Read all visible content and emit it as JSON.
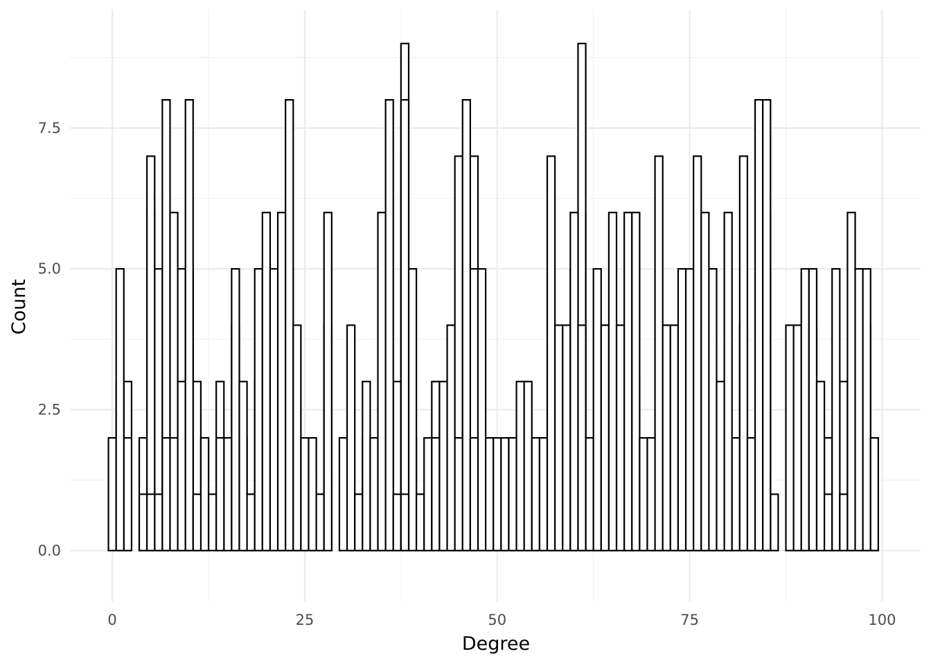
{
  "chart_data": {
    "type": "bar",
    "subtype": "histogram",
    "title": "",
    "xlabel": "Degree",
    "ylabel": "Count",
    "xlim": [
      -5.5,
      105
    ],
    "ylim": [
      -0.9,
      9.6
    ],
    "x_ticks": [
      0,
      25,
      50,
      75,
      100
    ],
    "x_tick_labels": [
      "0",
      "25",
      "50",
      "75",
      "100"
    ],
    "y_ticks": [
      0,
      2.5,
      5,
      7.5
    ],
    "y_tick_labels": [
      "0.0",
      "2.5",
      "5.0",
      "7.5"
    ],
    "grid": true,
    "bin_width": 1,
    "x": [
      0,
      1,
      2,
      3,
      4,
      5,
      6,
      7,
      8,
      9,
      10,
      11,
      12,
      13,
      14,
      15,
      16,
      17,
      18,
      19,
      20,
      21,
      22,
      23,
      24,
      25,
      26,
      27,
      28,
      29,
      30,
      31,
      32,
      33,
      34,
      35,
      36,
      37,
      38,
      39,
      40,
      41,
      42,
      43,
      44,
      45,
      46,
      47,
      48,
      49,
      50,
      51,
      52,
      53,
      54,
      55,
      56,
      57,
      58,
      59,
      60,
      61,
      62,
      63,
      64,
      65,
      66,
      67,
      68,
      69,
      70,
      71,
      72,
      73,
      74,
      75,
      76,
      77,
      78,
      79,
      80,
      81,
      82,
      83,
      84,
      85,
      86,
      87,
      88,
      89,
      90,
      91,
      92,
      93,
      94,
      95,
      96,
      97,
      98,
      99
    ],
    "series": [
      {
        "values": [
          2,
          3,
          3,
          0,
          0,
          4,
          3,
          5,
          4,
          3,
          5,
          2,
          2,
          1,
          1,
          1,
          4,
          2,
          1,
          3,
          3,
          3,
          3,
          5,
          3,
          1,
          1,
          1,
          4,
          0,
          0,
          1,
          1,
          2,
          1,
          2,
          1,
          3,
          7,
          2,
          1,
          1,
          3,
          2,
          1,
          4,
          2,
          7,
          2,
          1,
          1,
          1,
          2,
          2,
          2,
          2,
          2,
          3,
          2,
          2,
          4,
          6,
          2,
          1,
          4,
          4,
          2,
          4,
          3,
          1,
          1,
          3,
          1,
          2,
          3,
          2,
          5,
          2,
          2,
          2,
          2,
          2,
          4,
          2,
          3,
          6,
          1,
          0,
          0,
          3,
          4,
          4,
          1,
          2,
          1,
          3,
          1,
          3,
          4,
          1
        ]
      },
      {
        "values": [
          0,
          3,
          2,
          0,
          2,
          6,
          5,
          8,
          6,
          5,
          5,
          3,
          2,
          0,
          3,
          2,
          5,
          3,
          1,
          5,
          6,
          5,
          6,
          8,
          4,
          2,
          2,
          1,
          6,
          0,
          2,
          4,
          1,
          3,
          2,
          6,
          8,
          1,
          9,
          5,
          1,
          2,
          2,
          3,
          4,
          7,
          5,
          5,
          5,
          2,
          2,
          2,
          2,
          3,
          3,
          2,
          2,
          7,
          4,
          4,
          5,
          9,
          2,
          5,
          4,
          6,
          4,
          6,
          6,
          2,
          2,
          7,
          4,
          4,
          5,
          5,
          7,
          4,
          5,
          3,
          6,
          2,
          7,
          2,
          8,
          5,
          0,
          0,
          4,
          4,
          5,
          5,
          3,
          1,
          5,
          1,
          6,
          5,
          5,
          2
        ]
      },
      {
        "values": [
          0,
          5,
          0,
          0,
          1,
          7,
          1,
          2,
          2,
          3,
          8,
          1,
          0,
          0,
          2,
          0,
          0,
          0,
          0,
          0,
          0,
          0,
          0,
          0,
          0,
          0,
          0,
          0,
          0,
          0,
          0,
          0,
          0,
          0,
          0,
          0,
          0,
          0,
          8,
          0,
          0,
          0,
          0,
          0,
          0,
          2,
          8,
          2,
          0,
          0,
          0,
          0,
          0,
          0,
          0,
          0,
          0,
          0,
          0,
          0,
          6,
          4,
          0,
          0,
          0,
          0,
          0,
          0,
          0,
          0,
          0,
          0,
          0,
          0,
          0,
          0,
          0,
          6,
          0,
          0,
          0,
          0,
          0,
          0,
          0,
          8,
          0,
          0,
          0,
          0,
          0,
          0,
          0,
          0,
          0,
          0,
          0,
          0,
          0,
          0
        ]
      },
      {
        "values": [
          0,
          0,
          0,
          0,
          0,
          1,
          0,
          0,
          0,
          0,
          0,
          0,
          0,
          0,
          0,
          0,
          0,
          0,
          0,
          0,
          0,
          0,
          0,
          0,
          0,
          0,
          0,
          0,
          0,
          0,
          0,
          0,
          0,
          0,
          0,
          0,
          0,
          0,
          1,
          0,
          0,
          0,
          0,
          0,
          0,
          0,
          0,
          0,
          0,
          0,
          0,
          0,
          0,
          0,
          0,
          0,
          0,
          0,
          0,
          0,
          0,
          0,
          0,
          0,
          0,
          0,
          0,
          0,
          0,
          0,
          0,
          0,
          0,
          0,
          0,
          0,
          0,
          0,
          0,
          0,
          0,
          0,
          0,
          0,
          0,
          0,
          0,
          0,
          0,
          0,
          0,
          0,
          0,
          0,
          0,
          0,
          0,
          0,
          0,
          0
        ]
      }
    ]
  }
}
